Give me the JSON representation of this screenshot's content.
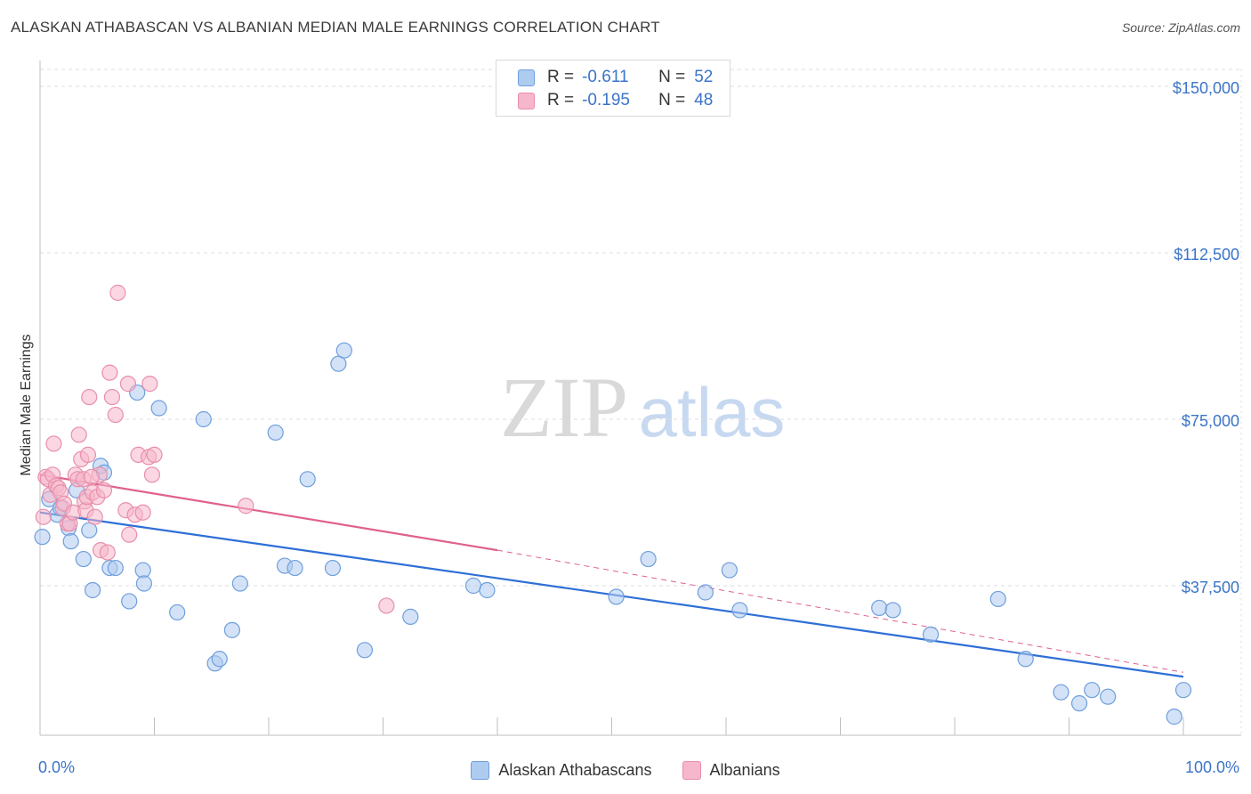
{
  "title": "ALASKAN ATHABASCAN VS ALBANIAN MEDIAN MALE EARNINGS CORRELATION CHART",
  "source": "Source: ZipAtlas.com",
  "watermark": {
    "zip": "ZIP",
    "atlas": "atlas"
  },
  "colors": {
    "blue_fill": "#aecbf0",
    "blue_stroke": "#6f9fdc",
    "blue_line": "#2e6fd6",
    "pink_fill": "#f6b6cb",
    "pink_stroke": "#e88fab",
    "pink_line": "#e0608e",
    "axis_label": "#3b74c9",
    "grid": "#dcdcdc"
  },
  "stats": [
    {
      "r_label": "R =",
      "r_value": "-0.611",
      "n_label": "N =",
      "n_value": "52"
    },
    {
      "r_label": "R =",
      "r_value": "-0.195",
      "n_label": "N =",
      "n_value": "48"
    }
  ],
  "legend": [
    "Alaskan Athabascans",
    "Albanians"
  ],
  "chart_data": {
    "type": "scatter",
    "title": "ALASKAN ATHABASCAN VS ALBANIAN MEDIAN MALE EARNINGS CORRELATION CHART",
    "xlabel": "",
    "ylabel": "Median Male Earnings",
    "xlim": [
      0,
      100
    ],
    "ylim": [
      0,
      155000
    ],
    "x_tick_labels": [
      "0.0%",
      "100.0%"
    ],
    "y_ticks": [
      37500,
      75000,
      112500,
      150000
    ],
    "y_tick_labels": [
      "$37,500",
      "$75,000",
      "$112,500",
      "$150,000"
    ],
    "grid": true,
    "legend_position": "bottom-center",
    "series": [
      {
        "name": "Alaskan Athabascans",
        "trend": {
          "x0": 0,
          "y0": 54000,
          "x1": 100,
          "y1": 17000,
          "dashed_from": null
        },
        "points": [
          [
            0.2,
            48500
          ],
          [
            0.8,
            57000
          ],
          [
            1.5,
            53500
          ],
          [
            1.8,
            55000
          ],
          [
            2.5,
            50500
          ],
          [
            2.7,
            47500
          ],
          [
            3.2,
            59000
          ],
          [
            3.8,
            43500
          ],
          [
            4.3,
            50000
          ],
          [
            4.6,
            36500
          ],
          [
            5.3,
            64500
          ],
          [
            5.6,
            63000
          ],
          [
            6.1,
            41500
          ],
          [
            6.6,
            41500
          ],
          [
            7.8,
            34000
          ],
          [
            8.5,
            81000
          ],
          [
            9.0,
            41000
          ],
          [
            9.1,
            38000
          ],
          [
            10.4,
            77500
          ],
          [
            12.0,
            31500
          ],
          [
            14.3,
            75000
          ],
          [
            15.3,
            20000
          ],
          [
            15.7,
            21000
          ],
          [
            16.8,
            27500
          ],
          [
            17.5,
            38000
          ],
          [
            20.6,
            72000
          ],
          [
            21.4,
            42000
          ],
          [
            22.3,
            41500
          ],
          [
            23.4,
            61500
          ],
          [
            25.6,
            41500
          ],
          [
            26.1,
            87500
          ],
          [
            26.6,
            90500
          ],
          [
            28.4,
            23000
          ],
          [
            32.4,
            30500
          ],
          [
            37.9,
            37500
          ],
          [
            39.1,
            36500
          ],
          [
            50.4,
            35000
          ],
          [
            53.2,
            43500
          ],
          [
            58.2,
            36000
          ],
          [
            60.3,
            41000
          ],
          [
            61.2,
            32000
          ],
          [
            73.4,
            32500
          ],
          [
            74.6,
            32000
          ],
          [
            77.9,
            26500
          ],
          [
            83.8,
            34500
          ],
          [
            86.2,
            21000
          ],
          [
            89.3,
            13500
          ],
          [
            90.9,
            11000
          ],
          [
            92.0,
            14000
          ],
          [
            93.4,
            12500
          ],
          [
            99.2,
            8000
          ],
          [
            100.0,
            14000
          ]
        ]
      },
      {
        "name": "Albanians",
        "trend": {
          "x0": 0,
          "y0": 62500,
          "x1": 40,
          "y1": 45500,
          "dashed_to": 100,
          "y_end": 18000
        },
        "points": [
          [
            0.3,
            53000
          ],
          [
            0.5,
            62000
          ],
          [
            0.7,
            61500
          ],
          [
            0.9,
            58000
          ],
          [
            1.1,
            62500
          ],
          [
            1.2,
            69500
          ],
          [
            1.4,
            60000
          ],
          [
            1.6,
            59500
          ],
          [
            1.8,
            58500
          ],
          [
            2.0,
            55000
          ],
          [
            2.1,
            56000
          ],
          [
            2.4,
            51500
          ],
          [
            2.6,
            51500
          ],
          [
            2.9,
            54000
          ],
          [
            3.1,
            62500
          ],
          [
            3.3,
            61500
          ],
          [
            3.4,
            71500
          ],
          [
            3.6,
            66000
          ],
          [
            3.8,
            61500
          ],
          [
            3.9,
            56500
          ],
          [
            4.0,
            54500
          ],
          [
            4.1,
            57500
          ],
          [
            4.2,
            67000
          ],
          [
            4.3,
            80000
          ],
          [
            4.6,
            58500
          ],
          [
            4.8,
            53000
          ],
          [
            5.0,
            57500
          ],
          [
            5.2,
            62500
          ],
          [
            5.3,
            45500
          ],
          [
            5.6,
            59000
          ],
          [
            5.9,
            45000
          ],
          [
            6.1,
            85500
          ],
          [
            6.3,
            80000
          ],
          [
            6.6,
            76000
          ],
          [
            6.8,
            103500
          ],
          [
            7.5,
            54500
          ],
          [
            7.7,
            83000
          ],
          [
            7.8,
            49000
          ],
          [
            8.3,
            53500
          ],
          [
            8.6,
            67000
          ],
          [
            9.0,
            54000
          ],
          [
            9.5,
            66500
          ],
          [
            9.6,
            83000
          ],
          [
            9.8,
            62500
          ],
          [
            10.0,
            67000
          ],
          [
            18.0,
            55500
          ],
          [
            30.3,
            33000
          ],
          [
            4.5,
            62000
          ]
        ]
      }
    ]
  }
}
